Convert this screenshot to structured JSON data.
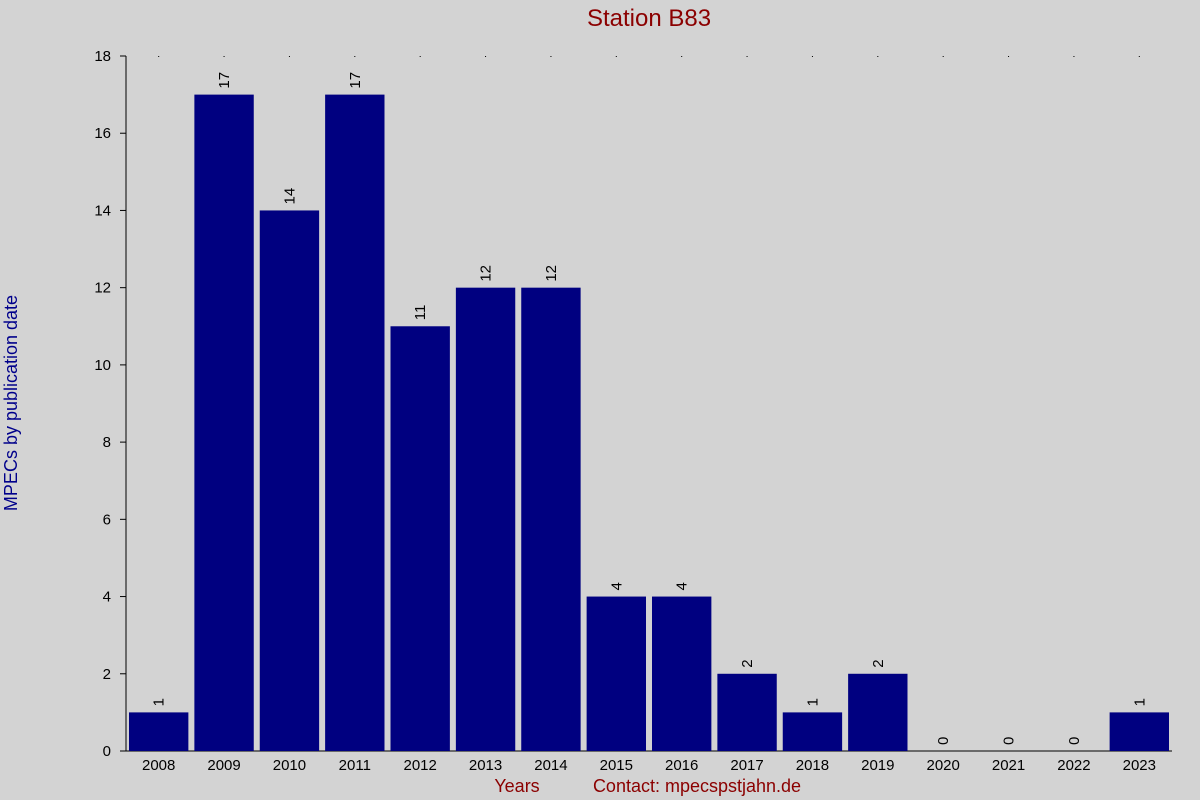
{
  "chart_data": {
    "type": "bar",
    "title": "Station B83",
    "ylabel": "MPECs by publication date",
    "xlabel": "Years",
    "contact": "Contact: mpecspstjahn.de",
    "categories": [
      "2008",
      "2009",
      "2010",
      "2011",
      "2012",
      "2013",
      "2014",
      "2015",
      "2016",
      "2017",
      "2018",
      "2019",
      "2020",
      "2021",
      "2022",
      "2023"
    ],
    "values": [
      1,
      17,
      14,
      17,
      11,
      12,
      12,
      4,
      4,
      2,
      1,
      2,
      0,
      0,
      0,
      1
    ],
    "yticks": [
      0,
      2,
      4,
      6,
      8,
      10,
      12,
      14,
      16,
      18
    ],
    "ylim": [
      0,
      18
    ],
    "grid": false,
    "bar_color": "#000080",
    "title_color": "#8b0000",
    "ylabel_color": "#00008b",
    "background": "#d3d3d3"
  }
}
